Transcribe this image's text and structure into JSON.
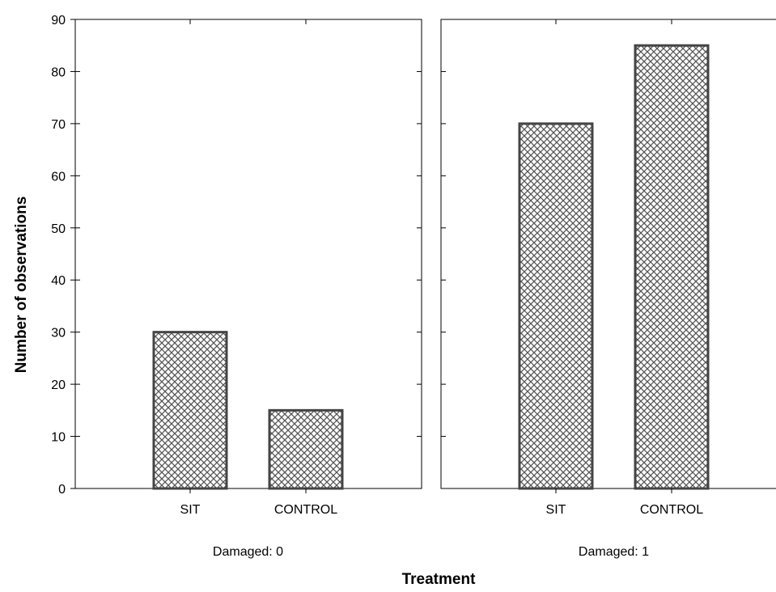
{
  "chart_data": {
    "type": "bar",
    "ylabel": "Number of observations",
    "xlabel": "Treatment",
    "ylim": [
      0,
      90
    ],
    "yticks": [
      0,
      10,
      20,
      30,
      40,
      50,
      60,
      70,
      80,
      90
    ],
    "categories": [
      "SIT",
      "CONTROL"
    ],
    "fill_pattern": "crosshatch",
    "bar_color": "#444444",
    "panels": [
      {
        "label": "Damaged: 0",
        "values": [
          30,
          15
        ]
      },
      {
        "label": "Damaged: 1",
        "values": [
          70,
          85
        ]
      }
    ]
  }
}
